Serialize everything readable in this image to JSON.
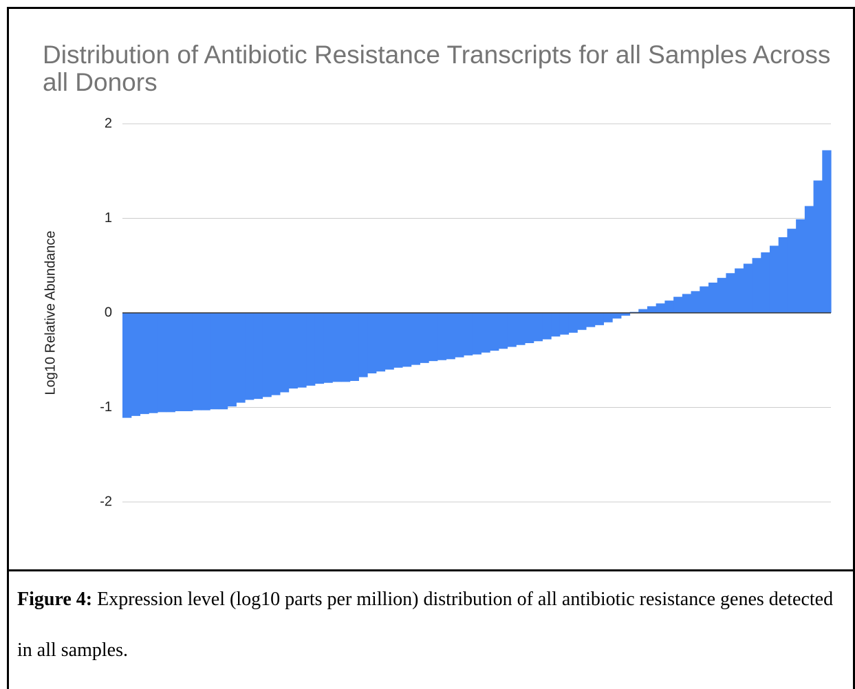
{
  "chart_data": {
    "type": "bar",
    "title": "Distribution of Antibiotic Resistance Transcripts for all Samples Across all Donors",
    "y_label": "Log10 Relative Abundance",
    "categories": [
      null,
      null,
      null,
      null,
      null,
      null,
      null,
      null,
      null,
      null,
      null,
      null,
      null,
      null,
      null,
      null,
      null,
      null,
      null,
      null,
      null,
      null,
      null,
      null,
      null,
      null,
      null,
      null,
      null,
      null,
      null,
      null,
      null,
      null,
      null,
      null,
      null,
      null,
      null,
      null,
      null,
      null,
      null,
      null,
      null,
      null,
      null,
      null,
      null,
      null,
      null,
      null,
      null,
      null,
      null,
      null,
      null,
      null,
      null,
      null,
      null,
      null,
      null,
      null,
      null,
      null,
      null,
      null,
      null,
      null,
      null,
      null,
      null,
      null,
      null,
      null,
      null,
      null,
      null,
      null,
      null
    ],
    "values": [
      -1.11,
      -1.09,
      -1.07,
      -1.06,
      -1.05,
      -1.05,
      -1.04,
      -1.04,
      -1.03,
      -1.03,
      -1.02,
      -1.02,
      -0.99,
      -0.95,
      -0.92,
      -0.91,
      -0.89,
      -0.87,
      -0.84,
      -0.8,
      -0.79,
      -0.77,
      -0.75,
      -0.74,
      -0.73,
      -0.73,
      -0.72,
      -0.68,
      -0.64,
      -0.62,
      -0.6,
      -0.58,
      -0.57,
      -0.55,
      -0.53,
      -0.51,
      -0.5,
      -0.49,
      -0.47,
      -0.45,
      -0.44,
      -0.42,
      -0.4,
      -0.38,
      -0.36,
      -0.34,
      -0.32,
      -0.3,
      -0.28,
      -0.25,
      -0.23,
      -0.21,
      -0.18,
      -0.15,
      -0.13,
      -0.1,
      -0.06,
      -0.03,
      0.01,
      0.04,
      0.07,
      0.1,
      0.13,
      0.17,
      0.2,
      0.23,
      0.28,
      0.32,
      0.37,
      0.42,
      0.47,
      0.52,
      0.58,
      0.64,
      0.71,
      0.8,
      0.89,
      0.99,
      1.13,
      1.4,
      1.72
    ],
    "color": "#4285f4",
    "ylim": [
      -2,
      2
    ],
    "yticks": [
      -2,
      -1,
      0,
      1,
      2
    ],
    "grid": true
  },
  "caption": {
    "label": "Figure 4:",
    "text": "Expression level (log10 parts per million) distribution of all antibiotic resistance genes detected in all samples."
  }
}
